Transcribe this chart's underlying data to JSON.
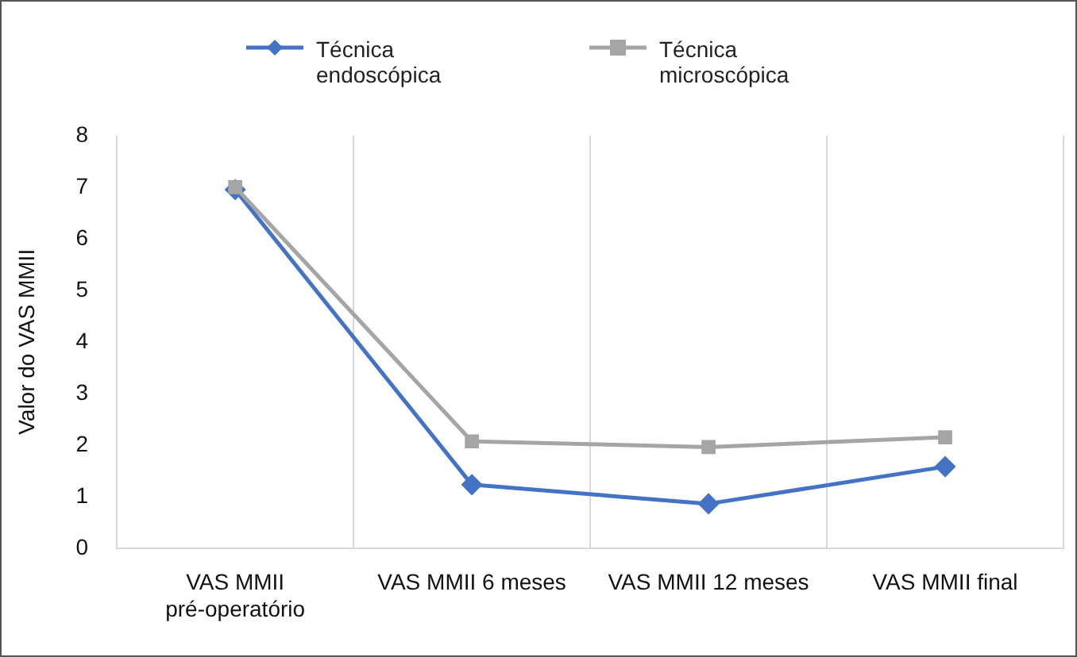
{
  "chart_data": {
    "type": "line",
    "ylabel": "Valor do VAS MMII",
    "categories": [
      "VAS MMII pré-operatório",
      "VAS MMII 6 meses",
      "VAS MMII 12 meses",
      "VAS MMII final"
    ],
    "series": [
      {
        "name": "Técnica endoscópica",
        "color": "#4472c4",
        "marker": "diamond",
        "values": [
          6.95,
          1.23,
          0.86,
          1.58
        ]
      },
      {
        "name": "Técnica microscópica",
        "color": "#a5a5a5",
        "marker": "square",
        "values": [
          7.0,
          2.07,
          1.96,
          2.15
        ]
      }
    ],
    "ylim": [
      0,
      8
    ],
    "yticks": [
      0,
      1,
      2,
      3,
      4,
      5,
      6,
      7,
      8
    ],
    "grid": "x",
    "legend": "top",
    "line_style": "solid"
  }
}
